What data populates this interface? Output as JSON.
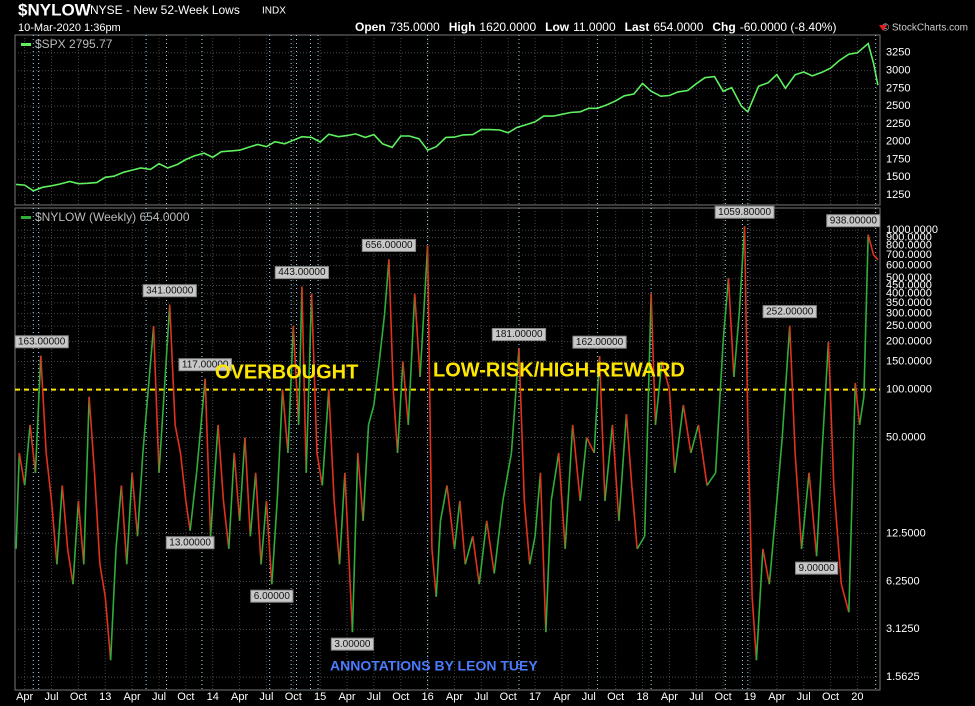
{
  "header": {
    "symbol": "$NYLOW",
    "description": "NYSE - New 52-Week Lows",
    "kind": "INDX",
    "date": "10-Mar-2020 1:36pm",
    "quote": [
      {
        "name": "Open",
        "value": 735,
        "label": "735.0000"
      },
      {
        "name": "High",
        "value": 1620,
        "label": "1620.0000"
      },
      {
        "name": "Low",
        "value": 11,
        "label": "11.0000"
      },
      {
        "name": "Last",
        "value": 654,
        "label": "654.0000"
      },
      {
        "name": "Chg",
        "value": -60,
        "label": "-60.0000 (-8.40%)"
      }
    ],
    "source": "© StockCharts.com"
  },
  "chart_data": [
    {
      "type": "line",
      "legend": "$SPX 2795.77",
      "color": "#5ef05e",
      "xlim": [
        2012.16,
        2020.21
      ],
      "ylim": [
        1110,
        3500
      ],
      "yticks": [
        1250,
        1500,
        1750,
        2000,
        2250,
        2500,
        2750,
        3000,
        3250
      ],
      "grid": true,
      "x": [
        2012.17,
        2012.25,
        2012.33,
        2012.42,
        2012.5,
        2012.58,
        2012.67,
        2012.75,
        2012.83,
        2012.92,
        2013.0,
        2013.08,
        2013.17,
        2013.25,
        2013.33,
        2013.42,
        2013.5,
        2013.58,
        2013.67,
        2013.75,
        2013.83,
        2013.92,
        2014.0,
        2014.08,
        2014.17,
        2014.25,
        2014.33,
        2014.42,
        2014.5,
        2014.58,
        2014.67,
        2014.75,
        2014.83,
        2014.92,
        2015.0,
        2015.08,
        2015.17,
        2015.25,
        2015.33,
        2015.42,
        2015.5,
        2015.58,
        2015.67,
        2015.75,
        2015.83,
        2015.92,
        2016.0,
        2016.08,
        2016.17,
        2016.25,
        2016.33,
        2016.42,
        2016.5,
        2016.58,
        2016.67,
        2016.75,
        2016.83,
        2016.92,
        2017.0,
        2017.08,
        2017.17,
        2017.25,
        2017.33,
        2017.42,
        2017.5,
        2017.58,
        2017.67,
        2017.75,
        2017.83,
        2017.92,
        2018.0,
        2018.08,
        2018.17,
        2018.25,
        2018.33,
        2018.42,
        2018.5,
        2018.58,
        2018.67,
        2018.75,
        2018.83,
        2018.92,
        2018.98,
        2019.08,
        2019.17,
        2019.25,
        2019.33,
        2019.42,
        2019.5,
        2019.58,
        2019.67,
        2019.75,
        2019.83,
        2019.92,
        2020.0,
        2020.1,
        2020.15,
        2020.19
      ],
      "values": [
        1400,
        1390,
        1310,
        1360,
        1380,
        1405,
        1440,
        1410,
        1415,
        1425,
        1500,
        1515,
        1570,
        1600,
        1630,
        1610,
        1690,
        1630,
        1680,
        1750,
        1800,
        1840,
        1780,
        1860,
        1870,
        1880,
        1920,
        1960,
        1930,
        2000,
        1970,
        2020,
        2070,
        2060,
        1995,
        2105,
        2070,
        2085,
        2110,
        2060,
        2100,
        1970,
        1920,
        2080,
        2080,
        2040,
        1880,
        1930,
        2060,
        2065,
        2095,
        2100,
        2170,
        2170,
        2165,
        2125,
        2200,
        2240,
        2280,
        2360,
        2360,
        2385,
        2410,
        2420,
        2470,
        2470,
        2520,
        2575,
        2645,
        2670,
        2820,
        2710,
        2640,
        2650,
        2700,
        2720,
        2815,
        2900,
        2915,
        2710,
        2760,
        2500,
        2420,
        2780,
        2830,
        2945,
        2750,
        2940,
        2980,
        2925,
        2975,
        3035,
        3140,
        3230,
        3250,
        3380,
        3100,
        2795.77
      ]
    },
    {
      "type": "line",
      "legend": "$NYLOW (Weekly) 654.0000",
      "log_scale": true,
      "up_color": "#2fae3a",
      "down_color": "#e2311d",
      "xlim": [
        2012.16,
        2020.21
      ],
      "ylim": [
        1.3,
        1380
      ],
      "grid": true,
      "yticks": [
        {
          "value": 1.5625,
          "label": "1.5625"
        },
        {
          "value": 3.125,
          "label": "3.1250"
        },
        {
          "value": 6.25,
          "label": "6.2500"
        },
        {
          "value": 12.5,
          "label": "12.5000"
        },
        {
          "value": 50,
          "label": "50.0000"
        },
        {
          "value": 100,
          "label": "100.0000"
        },
        {
          "value": 150,
          "label": "150.0000"
        },
        {
          "value": 200,
          "label": "200.0000"
        },
        {
          "value": 250,
          "label": "250.0000"
        },
        {
          "value": 300,
          "label": "300.0000"
        },
        {
          "value": 350,
          "label": "350.0000"
        },
        {
          "value": 400,
          "label": "400.0000"
        },
        {
          "value": 450,
          "label": "450.0000"
        },
        {
          "value": 500,
          "label": "500.0000"
        },
        {
          "value": 600,
          "label": "600.0000"
        },
        {
          "value": 700,
          "label": "700.0000"
        },
        {
          "value": 800,
          "label": "800.0000"
        },
        {
          "value": 900,
          "label": "900.0000"
        },
        {
          "value": 1000,
          "label": "1000.0000"
        }
      ],
      "xticks": [
        {
          "value": 2012.25,
          "label": "Apr"
        },
        {
          "value": 2012.5,
          "label": "Jul"
        },
        {
          "value": 2012.75,
          "label": "Oct"
        },
        {
          "value": 2013.0,
          "label": "13"
        },
        {
          "value": 2013.25,
          "label": "Apr"
        },
        {
          "value": 2013.5,
          "label": "Jul"
        },
        {
          "value": 2013.75,
          "label": "Oct"
        },
        {
          "value": 2014.0,
          "label": "14"
        },
        {
          "value": 2014.25,
          "label": "Apr"
        },
        {
          "value": 2014.5,
          "label": "Jul"
        },
        {
          "value": 2014.75,
          "label": "Oct"
        },
        {
          "value": 2015.0,
          "label": "15"
        },
        {
          "value": 2015.25,
          "label": "Apr"
        },
        {
          "value": 2015.5,
          "label": "Jul"
        },
        {
          "value": 2015.75,
          "label": "Oct"
        },
        {
          "value": 2016.0,
          "label": "16"
        },
        {
          "value": 2016.25,
          "label": "Apr"
        },
        {
          "value": 2016.5,
          "label": "Jul"
        },
        {
          "value": 2016.75,
          "label": "Oct"
        },
        {
          "value": 2017.0,
          "label": "17"
        },
        {
          "value": 2017.25,
          "label": "Apr"
        },
        {
          "value": 2017.5,
          "label": "Jul"
        },
        {
          "value": 2017.75,
          "label": "Oct"
        },
        {
          "value": 2018.0,
          "label": "18"
        },
        {
          "value": 2018.25,
          "label": "Apr"
        },
        {
          "value": 2018.5,
          "label": "Jul"
        },
        {
          "value": 2018.75,
          "label": "Oct"
        },
        {
          "value": 2019.0,
          "label": "19"
        },
        {
          "value": 2019.25,
          "label": "Apr"
        },
        {
          "value": 2019.5,
          "label": "Jul"
        },
        {
          "value": 2019.75,
          "label": "Oct"
        },
        {
          "value": 2020.0,
          "label": "20"
        }
      ],
      "hline": 100,
      "vlines": [
        2012.33,
        2012.38,
        2013.38,
        2013.57,
        2013.9,
        2014.53,
        2014.73,
        2014.78,
        2014.91,
        2014.98,
        2016.0,
        2016.85,
        2017.58,
        2018.08,
        2018.77,
        2018.93,
        2018.98,
        2020.17
      ],
      "x": [
        2012.17,
        2012.2,
        2012.25,
        2012.3,
        2012.35,
        2012.4,
        2012.45,
        2012.5,
        2012.55,
        2012.6,
        2012.65,
        2012.7,
        2012.75,
        2012.8,
        2012.85,
        2012.9,
        2012.95,
        2013.0,
        2013.05,
        2013.1,
        2013.15,
        2013.2,
        2013.25,
        2013.3,
        2013.35,
        2013.4,
        2013.45,
        2013.5,
        2013.55,
        2013.6,
        2013.65,
        2013.7,
        2013.75,
        2013.79,
        2013.85,
        2013.93,
        2013.98,
        2014.05,
        2014.1,
        2014.15,
        2014.2,
        2014.25,
        2014.3,
        2014.35,
        2014.4,
        2014.45,
        2014.5,
        2014.55,
        2014.6,
        2014.65,
        2014.7,
        2014.75,
        2014.8,
        2014.83,
        2014.87,
        2014.92,
        2014.97,
        2015.02,
        2015.08,
        2015.13,
        2015.18,
        2015.23,
        2015.3,
        2015.35,
        2015.4,
        2015.45,
        2015.5,
        2015.55,
        2015.6,
        2015.64,
        2015.68,
        2015.72,
        2015.77,
        2015.82,
        2015.88,
        2015.93,
        2016.0,
        2016.04,
        2016.08,
        2016.12,
        2016.18,
        2016.25,
        2016.3,
        2016.35,
        2016.42,
        2016.48,
        2016.55,
        2016.62,
        2016.7,
        2016.78,
        2016.85,
        2016.9,
        2016.95,
        2017.0,
        2017.05,
        2017.1,
        2017.15,
        2017.22,
        2017.28,
        2017.35,
        2017.42,
        2017.48,
        2017.55,
        2017.6,
        2017.65,
        2017.72,
        2017.78,
        2017.85,
        2017.9,
        2017.95,
        2018.02,
        2018.08,
        2018.12,
        2018.18,
        2018.25,
        2018.3,
        2018.38,
        2018.45,
        2018.52,
        2018.6,
        2018.68,
        2018.75,
        2018.8,
        2018.85,
        2018.9,
        2018.95,
        2018.98,
        2019.02,
        2019.06,
        2019.12,
        2019.18,
        2019.25,
        2019.3,
        2019.37,
        2019.42,
        2019.48,
        2019.55,
        2019.62,
        2019.67,
        2019.73,
        2019.78,
        2019.85,
        2019.92,
        2019.98,
        2020.02,
        2020.06,
        2020.1,
        2020.15,
        2020.19
      ],
      "values": [
        10,
        40,
        25,
        60,
        30,
        163,
        40,
        20,
        8,
        25,
        10,
        6,
        20,
        8,
        90,
        30,
        8,
        5,
        2,
        10,
        25,
        8,
        30,
        12,
        40,
        100,
        250,
        30,
        100,
        341,
        60,
        40,
        20,
        13,
        30,
        117,
        12,
        60,
        20,
        10,
        40,
        15,
        50,
        12,
        30,
        8,
        20,
        6,
        20,
        100,
        40,
        250,
        60,
        443,
        30,
        400,
        40,
        25,
        100,
        20,
        8,
        30,
        3,
        40,
        15,
        60,
        80,
        150,
        300,
        656,
        100,
        40,
        150,
        60,
        400,
        120,
        800,
        10,
        5,
        15,
        25,
        10,
        20,
        8,
        12,
        6,
        15,
        7,
        20,
        40,
        181,
        20,
        8,
        12,
        30,
        3,
        20,
        40,
        10,
        60,
        20,
        50,
        40,
        162,
        20,
        60,
        15,
        70,
        25,
        10,
        12,
        400,
        60,
        150,
        100,
        30,
        80,
        40,
        60,
        25,
        30,
        200,
        500,
        120,
        300,
        1059.8,
        60,
        5,
        2,
        10,
        6,
        20,
        50,
        252,
        40,
        10,
        30,
        9,
        40,
        200,
        25,
        6,
        4,
        110,
        60,
        90,
        938,
        700,
        654
      ],
      "value_annotations": [
        {
          "x": 2012.4,
          "value": 163,
          "label": "163.00000"
        },
        {
          "x": 2013.6,
          "value": 341,
          "label": "341.00000"
        },
        {
          "x": 2013.79,
          "value": 13,
          "label": "13.00000"
        },
        {
          "x": 2013.93,
          "value": 117,
          "label": "117.00000"
        },
        {
          "x": 2014.55,
          "value": 6,
          "label": "6.00000"
        },
        {
          "x": 2014.83,
          "value": 443,
          "label": "443.00000"
        },
        {
          "x": 2015.3,
          "value": 3,
          "label": "3.00000"
        },
        {
          "x": 2015.64,
          "value": 656,
          "label": "656.00000"
        },
        {
          "x": 2016.85,
          "value": 181,
          "label": "181.00000"
        },
        {
          "x": 2017.6,
          "value": 162,
          "label": "162.00000"
        },
        {
          "x": 2018.95,
          "value": 1059.8,
          "label": "1059.80000"
        },
        {
          "x": 2019.37,
          "value": 252,
          "label": "252.00000"
        },
        {
          "x": 2019.62,
          "value": 9,
          "label": "9.00000"
        },
        {
          "x": 2020.1,
          "value": 938,
          "label": "938.00000"
        }
      ],
      "annotations": [
        "OVERBOUGHT",
        "LOW-RISK/HIGH-REWARD",
        "ANNOTATIONS BY LEON TUEY"
      ]
    }
  ]
}
